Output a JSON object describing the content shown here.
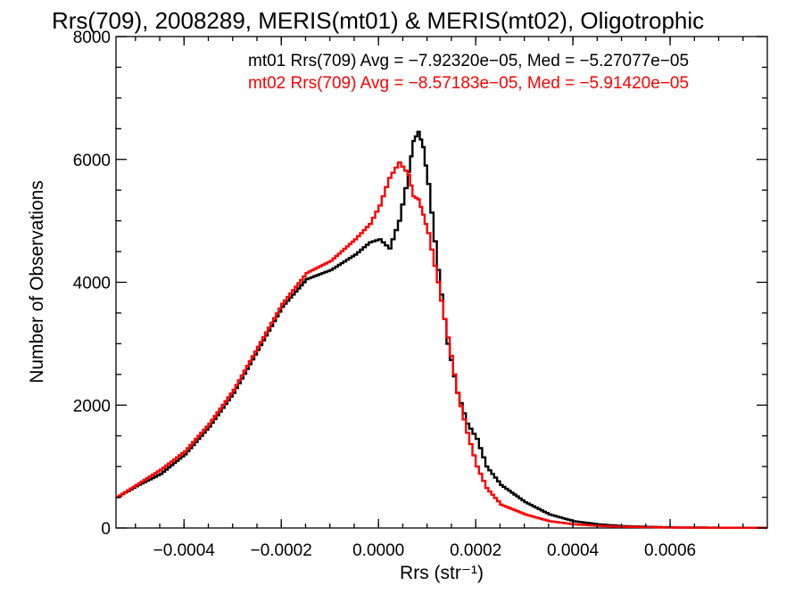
{
  "chart_data": {
    "type": "line",
    "title": "Rrs(709), 2008289, MERIS(mt01) & MERIS(mt02), Oligotrophic",
    "xlabel": "Rrs (str⁻¹)",
    "ylabel": "Number of Observations",
    "xlim": [
      -0.00054,
      0.0008
    ],
    "ylim": [
      0,
      8000
    ],
    "x_ticks": [
      -0.0004,
      -0.0002,
      0.0,
      0.0002,
      0.0004,
      0.0006
    ],
    "x_tick_labels": [
      "−0.0004",
      "−0.0002",
      "0.0000",
      "0.0002",
      "0.0004",
      "0.0006"
    ],
    "y_ticks": [
      0,
      2000,
      4000,
      6000,
      8000
    ],
    "y_tick_labels": [
      "0",
      "2000",
      "4000",
      "6000",
      "8000"
    ],
    "grid": false,
    "legend": {
      "placement": "top-right",
      "entries": [
        "mt01 Rrs(709) Avg = −7.92320e−05, Med = −5.27077e−05",
        "mt02 Rrs(709) Avg = −8.57183e−05, Med = −5.91420e−05"
      ]
    },
    "series": [
      {
        "name": "mt01",
        "color": "#000000",
        "x": [
          -0.00054,
          -0.0005,
          -0.00045,
          -0.0004,
          -0.00035,
          -0.0003,
          -0.00025,
          -0.0002,
          -0.00015,
          -0.0001,
          -5e-05,
          -2e-05,
          0.0,
          2e-05,
          4e-05,
          6e-05,
          7e-05,
          8e-05,
          9e-05,
          0.0001,
          0.00012,
          0.00014,
          0.00016,
          0.00018,
          0.0002,
          0.00022,
          0.00025,
          0.0003,
          0.00035,
          0.0004,
          0.00045,
          0.0005,
          0.0006,
          0.0007,
          0.0008
        ],
        "y": [
          500,
          680,
          880,
          1200,
          1650,
          2200,
          2900,
          3600,
          4050,
          4200,
          4450,
          4650,
          4700,
          4550,
          5000,
          5800,
          6300,
          6450,
          6200,
          5600,
          4200,
          3000,
          2200,
          1700,
          1450,
          1000,
          700,
          420,
          220,
          110,
          60,
          30,
          10,
          5,
          2
        ]
      },
      {
        "name": "mt02",
        "color": "#ff0000",
        "x": [
          -0.00054,
          -0.0005,
          -0.00045,
          -0.0004,
          -0.00035,
          -0.0003,
          -0.00025,
          -0.0002,
          -0.00015,
          -0.0001,
          -5e-05,
          -2e-05,
          0.0,
          2e-05,
          4e-05,
          6e-05,
          7e-05,
          8e-05,
          9e-05,
          0.0001,
          0.00012,
          0.00014,
          0.00016,
          0.00018,
          0.0002,
          0.00022,
          0.00025,
          0.0003,
          0.00035,
          0.0004,
          0.00045,
          0.0005,
          0.0006,
          0.0007,
          0.0008
        ],
        "y": [
          500,
          700,
          950,
          1250,
          1700,
          2250,
          2950,
          3650,
          4150,
          4350,
          4700,
          4950,
          5250,
          5700,
          5950,
          5750,
          5400,
          5350,
          5100,
          4800,
          4000,
          3100,
          2200,
          1550,
          1000,
          650,
          380,
          220,
          110,
          60,
          35,
          20,
          8,
          4,
          2
        ]
      }
    ]
  }
}
